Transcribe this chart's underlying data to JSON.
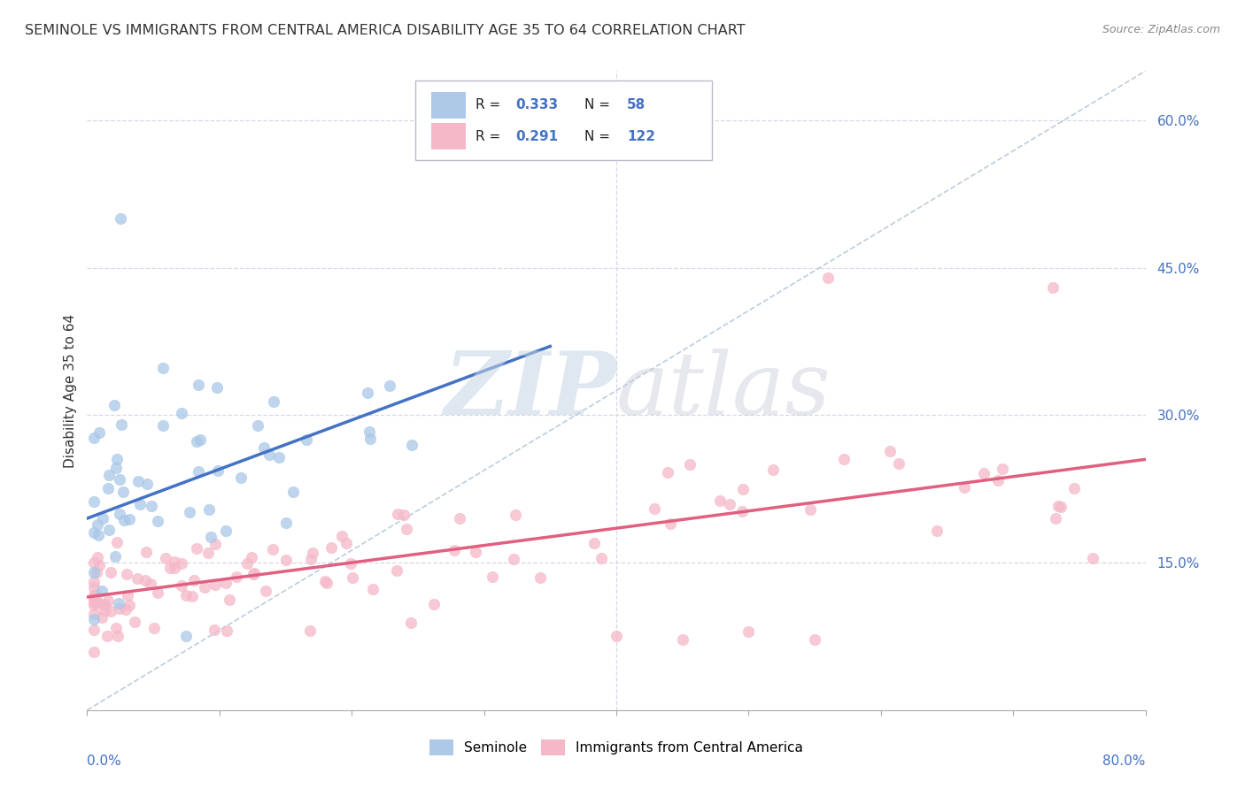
{
  "title": "SEMINOLE VS IMMIGRANTS FROM CENTRAL AMERICA DISABILITY AGE 35 TO 64 CORRELATION CHART",
  "source_text": "Source: ZipAtlas.com",
  "ylabel": "Disability Age 35 to 64",
  "xlim": [
    0.0,
    0.8
  ],
  "ylim": [
    0.0,
    0.65
  ],
  "ytick_right_values": [
    0.15,
    0.3,
    0.45,
    0.6
  ],
  "seminole_color": "#a8c8e8",
  "immigrants_color": "#f5b8c8",
  "seminole_line_color": "#4472c4",
  "immigrants_line_color": "#e06080",
  "dashed_line_color": "#a0b8d0",
  "legend_color_blue": "#4472c4",
  "background_color": "#ffffff",
  "watermark": "ZIPatlas",
  "watermark_zip_color": "#c8d8e8",
  "watermark_atlas_color": "#c8d0d8",
  "seminole_R": 0.333,
  "seminole_N": 58,
  "immigrants_R": 0.291,
  "immigrants_N": 122,
  "blue_line_x0": 0.0,
  "blue_line_y0": 0.195,
  "blue_line_x1": 0.35,
  "blue_line_y1": 0.37,
  "pink_line_x0": 0.0,
  "pink_line_y0": 0.115,
  "pink_line_x1": 0.8,
  "pink_line_y1": 0.255,
  "dashed_line_x0": 0.0,
  "dashed_line_y0": 0.0,
  "dashed_line_x1": 0.8,
  "dashed_line_y1": 0.65
}
